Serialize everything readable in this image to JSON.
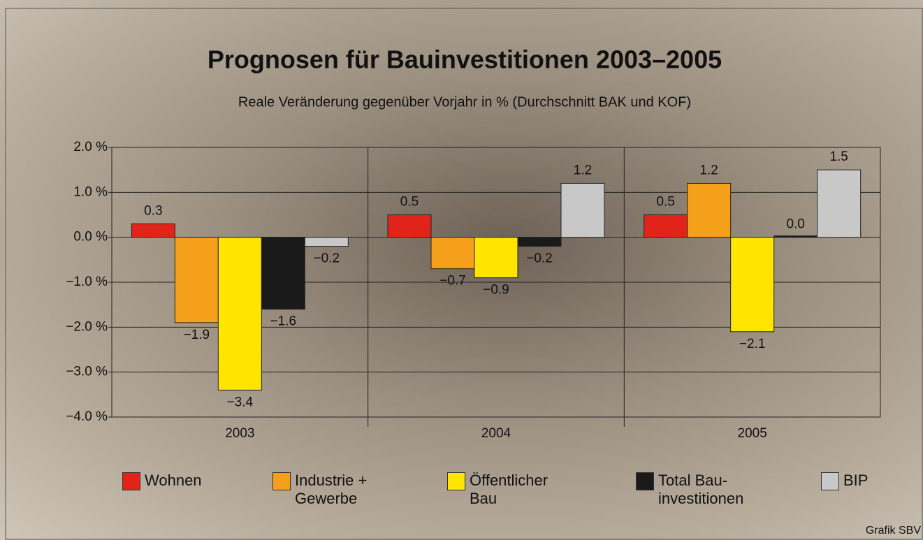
{
  "chart_data": {
    "type": "bar",
    "title": "Prognosen für Bauinvestitionen 2003–2005",
    "subtitle": "Reale Veränderung gegenüber Vorjahr in % (Durchschnitt BAK und KOF)",
    "categories": [
      "2003",
      "2004",
      "2005"
    ],
    "series": [
      {
        "name": "Wohnen",
        "color": "#e2231a",
        "values": [
          0.3,
          0.5,
          0.5
        ],
        "value_labels": [
          "0.3",
          "0.5",
          "0.5"
        ]
      },
      {
        "name": "Industrie +\nGewerbe",
        "color": "#f5a01a",
        "values": [
          -1.9,
          -0.7,
          1.2
        ],
        "value_labels": [
          "−1.9",
          "−0.7",
          "1.2"
        ]
      },
      {
        "name": "Öffentlicher\nBau",
        "color": "#ffe500",
        "values": [
          -3.4,
          -0.9,
          -2.1
        ],
        "value_labels": [
          "−3.4",
          "−0.9",
          "−2.1"
        ]
      },
      {
        "name": "Total Bau-\ninvestitionen",
        "color": "#1a1a1a",
        "values": [
          -1.6,
          -0.2,
          0.0
        ],
        "value_labels": [
          "−1.6",
          "−0.2",
          "0.0"
        ]
      },
      {
        "name": "BIP",
        "color": "#c8c8c8",
        "values": [
          -0.2,
          1.2,
          1.5
        ],
        "value_labels": [
          "−0.2",
          "1.2",
          "1.5"
        ]
      }
    ],
    "ylim": [
      -4,
      2
    ],
    "yticks": [
      {
        "value": 2,
        "label": "2.0 %"
      },
      {
        "value": 1,
        "label": "1.0 %"
      },
      {
        "value": 0,
        "label": "0.0 %"
      },
      {
        "value": -1,
        "label": "−1.0 %"
      },
      {
        "value": -2,
        "label": "−2.0 %"
      },
      {
        "value": -3,
        "label": "−3.0 %"
      },
      {
        "value": -4,
        "label": "−4.0 %"
      }
    ],
    "grid": true,
    "source": "Grafik SBV"
  }
}
